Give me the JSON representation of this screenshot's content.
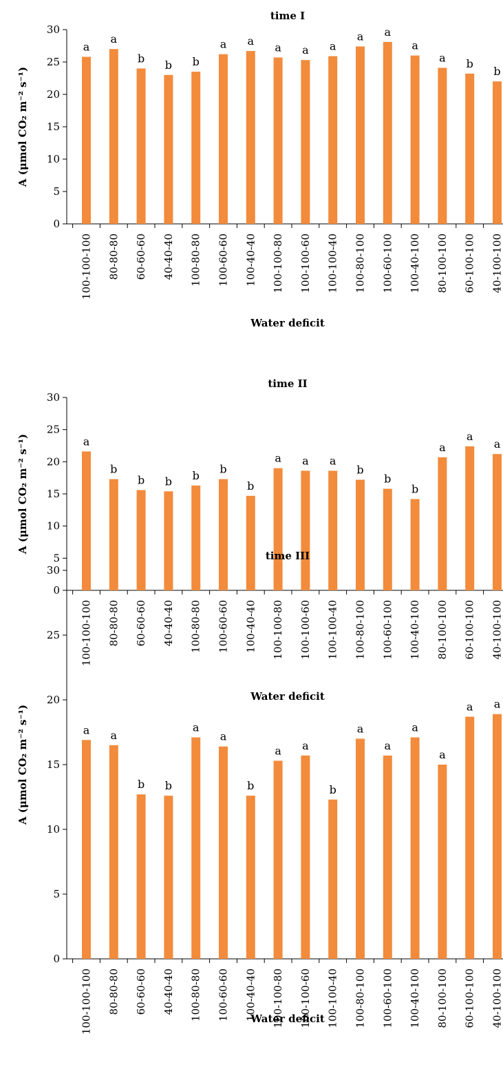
{
  "colors": {
    "bar": "#F28B3C",
    "axis": "#000000"
  },
  "chart_data": [
    {
      "type": "bar",
      "title": "time I",
      "xlabel": "Water deficit",
      "ylabel": "A (μmol CO₂ m⁻² s⁻¹)",
      "ylim": [
        0,
        30
      ],
      "yticks": [
        0,
        5,
        10,
        15,
        20,
        25,
        30
      ],
      "categories": [
        "100-100-100",
        "80-80-80",
        "60-60-60",
        "40-40-40",
        "100-80-80",
        "100-60-60",
        "100-40-40",
        "100-100-80",
        "100-100-60",
        "100-100-40",
        "100-80-100",
        "100-60-100",
        "100-40-100",
        "80-100-100",
        "60-100-100",
        "40-100-100"
      ],
      "values": [
        25.8,
        27.0,
        24.0,
        23.0,
        23.5,
        26.2,
        26.7,
        25.7,
        25.3,
        25.9,
        27.4,
        28.1,
        26.0,
        24.1,
        23.2,
        22.0
      ],
      "annotations": [
        "a",
        "a",
        "b",
        "b",
        "b",
        "a",
        "a",
        "a",
        "a",
        "a",
        "a",
        "a",
        "a",
        "a",
        "b",
        "b"
      ]
    },
    {
      "type": "bar",
      "title": "time II",
      "xlabel": "Water deficit",
      "ylabel": "A (μmol CO₂ m⁻² s⁻¹)",
      "ylim": [
        0,
        30
      ],
      "yticks": [
        0,
        5,
        10,
        15,
        20,
        25,
        30
      ],
      "categories": [
        "100-100-100",
        "80-80-80",
        "60-60-60",
        "40-40-40",
        "100-80-80",
        "100-60-60",
        "100-40-40",
        "100-100-80",
        "100-100-60",
        "100-100-40",
        "100-80-100",
        "100-60-100",
        "100-40-100",
        "80-100-100",
        "60-100-100",
        "40-100-100"
      ],
      "values": [
        21.6,
        17.3,
        15.6,
        15.4,
        16.3,
        17.3,
        14.7,
        19.0,
        18.6,
        18.6,
        17.2,
        15.8,
        14.2,
        20.7,
        22.4,
        21.2
      ],
      "annotations": [
        "a",
        "b",
        "b",
        "b",
        "b",
        "b",
        "b",
        "a",
        "a",
        "a",
        "b",
        "b",
        "b",
        "a",
        "a",
        "a"
      ]
    },
    {
      "type": "bar",
      "title": "time III",
      "xlabel": "Water deficit",
      "ylabel": "A (μmol CO₂ m⁻² s⁻¹)",
      "ylim": [
        0,
        30
      ],
      "yticks": [
        0,
        5,
        10,
        15,
        20,
        25,
        30
      ],
      "categories": [
        "100-100-100",
        "80-80-80",
        "60-60-60",
        "40-40-40",
        "100-80-80",
        "100-60-60",
        "100-40-40",
        "100-100-80",
        "100-100-60",
        "100-100-40",
        "100-80-100",
        "100-60-100",
        "100-40-100",
        "80-100-100",
        "60-100-100",
        "40-100-100"
      ],
      "values": [
        16.9,
        16.5,
        12.7,
        12.6,
        17.1,
        16.4,
        12.6,
        15.3,
        15.7,
        12.3,
        17.0,
        15.7,
        17.1,
        15.0,
        18.7,
        18.9
      ],
      "annotations": [
        "a",
        "a",
        "b",
        "b",
        "a",
        "a",
        "b",
        "a",
        "a",
        "b",
        "a",
        "a",
        "a",
        "a",
        "a",
        "a"
      ]
    }
  ]
}
